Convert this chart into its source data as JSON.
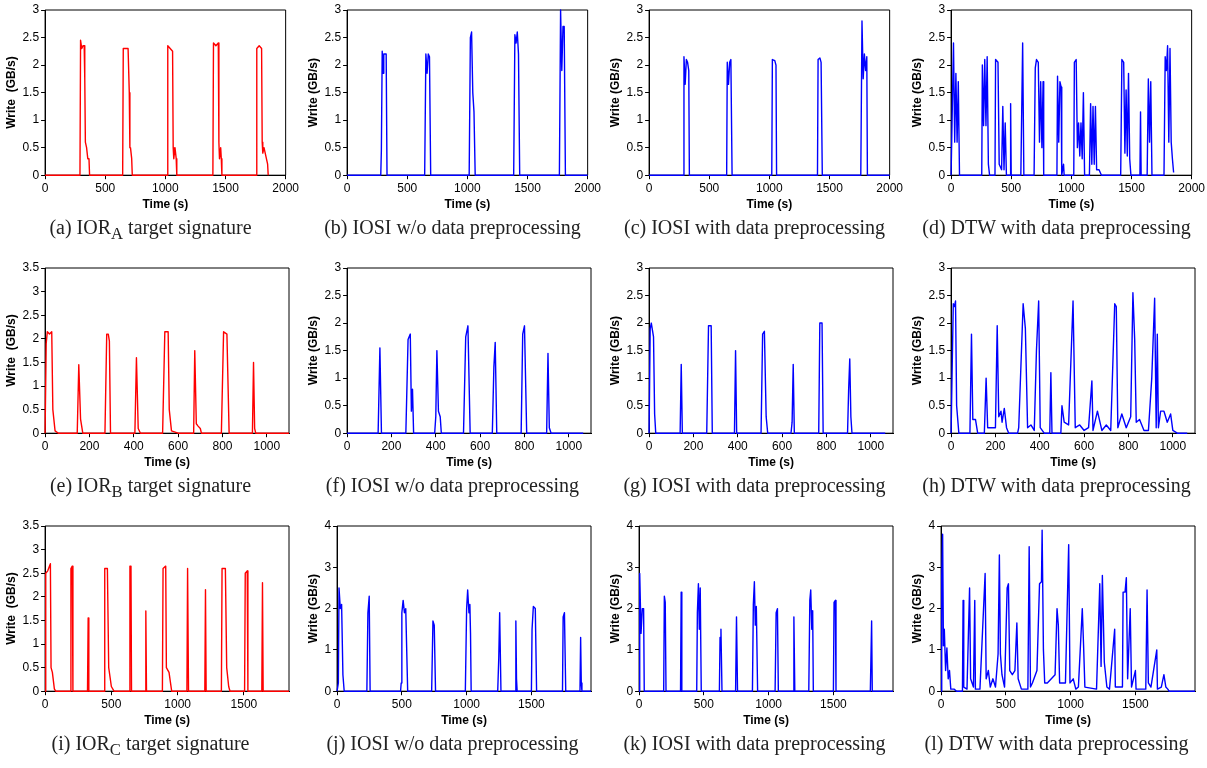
{
  "chart_data": [
    {
      "type": "line",
      "title": "(a) IOR$_{A}$ target signature",
      "xlabel": "Time (s)",
      "ylabel": "Write  (GB/s)",
      "xlim": [
        0,
        2000
      ],
      "xticks": [
        0,
        500,
        1000,
        1500,
        2000
      ],
      "ylim": [
        0,
        3
      ],
      "yticks": [
        0,
        0.5,
        1,
        1.5,
        2,
        2.5,
        3
      ],
      "x": [
        0,
        290,
        295,
        305,
        315,
        325,
        330,
        335,
        345,
        355,
        365,
        370,
        645,
        650,
        670,
        690,
        700,
        705,
        710,
        720,
        725,
        1015,
        1020,
        1040,
        1060,
        1065,
        1070,
        1080,
        1090,
        1095,
        1395,
        1400,
        1420,
        1440,
        1445,
        1450,
        1460,
        1465,
        1470,
        1755,
        1760,
        1780,
        1800,
        1805,
        1810,
        1820,
        1840,
        1850,
        1855
      ],
      "series": [
        {
          "color": "#ff0000",
          "values": [
            0,
            0,
            2.45,
            2.3,
            2.35,
            2.35,
            1.75,
            0.6,
            0.5,
            0.3,
            0.3,
            0,
            0,
            2.3,
            2.3,
            2.3,
            1.5,
            0.5,
            0.5,
            0.3,
            0,
            0,
            2.35,
            2.3,
            2.25,
            0.5,
            0.3,
            0.5,
            0.3,
            0,
            0,
            2.4,
            2.35,
            2.4,
            0.6,
            0.3,
            0.5,
            0.3,
            0,
            0,
            2.3,
            2.35,
            2.3,
            0.6,
            0.4,
            0.5,
            0.3,
            0.2,
            0
          ]
        }
      ]
    },
    {
      "type": "line",
      "title": "(b) IOSI w/o data preprocessing",
      "xlabel": "Time (s)",
      "ylabel": "Write (GB/s)",
      "xlim": [
        0,
        2000
      ],
      "xticks": [
        0,
        500,
        1000,
        1500,
        2000
      ],
      "ylim": [
        0,
        3
      ],
      "yticks": [
        0,
        0.5,
        1,
        1.5,
        2,
        2.5,
        3
      ],
      "x": [
        0,
        280,
        285,
        292,
        300,
        305,
        315,
        325,
        332,
        645,
        655,
        665,
        675,
        685,
        695,
        1015,
        1025,
        1035,
        1045,
        1055,
        1065,
        1385,
        1395,
        1405,
        1415,
        1425,
        1435,
        1765,
        1775,
        1785,
        1795,
        1805,
        1815,
        2000
      ],
      "series": [
        {
          "color": "#0000ff",
          "values": [
            0,
            0,
            0.45,
            2.25,
            1.85,
            2.2,
            2.2,
            2.2,
            0,
            0,
            2.2,
            1.85,
            2.2,
            2.15,
            0,
            0,
            2.5,
            2.6,
            1.5,
            1.15,
            0,
            0,
            2.55,
            2.4,
            2.6,
            2.2,
            0,
            0,
            3,
            1.9,
            2.7,
            2.7,
            0,
            0
          ]
        }
      ]
    },
    {
      "type": "line",
      "title": "(c) IOSI with data preprocessing",
      "xlabel": "Time (s)",
      "ylabel": "Write (GB/s)",
      "xlim": [
        0,
        2000
      ],
      "xticks": [
        0,
        500,
        1000,
        1500,
        2000
      ],
      "ylim": [
        0,
        3
      ],
      "yticks": [
        0,
        0.5,
        1,
        1.5,
        2,
        2.5,
        3
      ],
      "x": [
        0,
        285,
        290,
        300,
        310,
        320,
        330,
        335,
        645,
        650,
        660,
        670,
        680,
        690,
        1020,
        1025,
        1045,
        1055,
        1060,
        1400,
        1405,
        1420,
        1430,
        1440,
        1760,
        1770,
        1780,
        1790,
        1800,
        1810,
        1815,
        2000
      ],
      "series": [
        {
          "color": "#0000ff",
          "values": [
            0,
            0,
            2.15,
            1.65,
            2.1,
            2.05,
            1.9,
            0,
            0,
            2.05,
            1.65,
            2.05,
            2.1,
            0,
            0,
            2.1,
            2.08,
            2,
            0,
            0,
            2.1,
            2.13,
            2.05,
            0,
            0,
            2.8,
            1.75,
            2.2,
            1.9,
            2.15,
            0,
            0
          ]
        }
      ]
    },
    {
      "type": "line",
      "title": "(d) DTW with data preprocessing",
      "xlabel": "Time (s)",
      "ylabel": "Write (GB/s)",
      "xlim": [
        0,
        2000
      ],
      "xticks": [
        0,
        500,
        1000,
        1500,
        2000
      ],
      "ylim": [
        0,
        3
      ],
      "yticks": [
        0,
        0.5,
        1,
        1.5,
        2,
        2.5,
        3
      ],
      "x": [
        0,
        20,
        30,
        40,
        50,
        60,
        70,
        255,
        260,
        270,
        280,
        290,
        300,
        310,
        320,
        365,
        370,
        390,
        400,
        420,
        430,
        440,
        450,
        460,
        490,
        495,
        500,
        580,
        595,
        605,
        690,
        700,
        710,
        725,
        735,
        745,
        755,
        765,
        770,
        880,
        885,
        895,
        905,
        915,
        920,
        935,
        940,
        1020,
        1025,
        1040,
        1050,
        1060,
        1070,
        1080,
        1090,
        1100,
        1110,
        1150,
        1160,
        1170,
        1180,
        1190,
        1200,
        1210,
        1230,
        1250,
        1410,
        1420,
        1435,
        1445,
        1455,
        1465,
        1475,
        1485,
        1495,
        1570,
        1575,
        1580,
        1630,
        1640,
        1650,
        1660,
        1670,
        1770,
        1780,
        1790,
        1800,
        1810,
        1820,
        1830,
        1840,
        1850
      ],
      "series": [
        {
          "color": "#0000ff",
          "values": [
            0,
            2.4,
            0.6,
            1.85,
            0.6,
            1.7,
            0,
            0,
            2,
            0.9,
            2.1,
            0.9,
            2.15,
            0.2,
            0,
            0,
            2.1,
            2.05,
            0.2,
            0.1,
            1.25,
            0.1,
            0.95,
            0,
            0,
            1.3,
            0,
            0,
            2.4,
            0,
            0,
            1.95,
            2.1,
            2.05,
            0.6,
            1.7,
            0.5,
            1.7,
            0,
            0,
            1.8,
            0.6,
            1.7,
            1.6,
            0,
            0.2,
            0,
            0,
            2.05,
            2.1,
            0.5,
            0.95,
            0.35,
            0.95,
            0.3,
            1.5,
            0,
            0,
            1.3,
            0.2,
            1.25,
            0.2,
            1.25,
            0.1,
            0.1,
            0,
            0,
            2.1,
            2.05,
            0.4,
            1.55,
            0.35,
            1.85,
            0.3,
            0,
            0,
            1.15,
            0,
            0,
            1.75,
            0.6,
            1.7,
            0,
            0,
            2.15,
            1.9,
            2.35,
            0.6,
            2.3,
            0.6,
            0.3,
            0.05
          ]
        }
      ]
    },
    {
      "type": "line",
      "title": "(e) IOR$_{B}$ target signature",
      "xlabel": "Time (s)",
      "ylabel": "Write  (GB/s)",
      "xlim": [
        0,
        1100
      ],
      "xticks": [
        0,
        200,
        400,
        600,
        800,
        1000
      ],
      "ylim": [
        0,
        3.5
      ],
      "yticks": [
        0,
        0.5,
        1,
        1.5,
        2,
        2.5,
        3,
        3.5
      ],
      "x": [
        0,
        5,
        10,
        20,
        30,
        35,
        45,
        60,
        145,
        152,
        160,
        170,
        270,
        278,
        285,
        290,
        295,
        405,
        412,
        420,
        430,
        530,
        540,
        555,
        560,
        570,
        600,
        670,
        675,
        682,
        690,
        700,
        705,
        795,
        805,
        820,
        830,
        935,
        940,
        945,
        950,
        1100
      ],
      "series": [
        {
          "color": "#ff0000",
          "values": [
            0,
            1.9,
            2.15,
            2.1,
            2.15,
            0.5,
            0.05,
            0,
            0,
            1.45,
            0.3,
            0,
            0,
            2.1,
            2.1,
            1.95,
            0,
            0,
            1.6,
            0.1,
            0,
            0,
            2.15,
            2.15,
            0.5,
            0.05,
            0,
            0,
            1.75,
            0.2,
            0.15,
            0.1,
            0,
            0,
            2.15,
            2.1,
            0,
            0,
            1.5,
            0.1,
            0,
            0
          ]
        }
      ]
    },
    {
      "type": "line",
      "title": "(f) IOSI w/o data preprocessing",
      "xlabel": "Time (s)",
      "ylabel": "Write (GB/s)",
      "xlim": [
        0,
        1100
      ],
      "xticks": [
        0,
        200,
        400,
        600,
        800,
        1000
      ],
      "ylim": [
        0,
        3
      ],
      "yticks": [
        0,
        0.5,
        1,
        1.5,
        2,
        2.5,
        3
      ],
      "x": [
        0,
        140,
        148,
        155,
        265,
        275,
        285,
        290,
        295,
        300,
        395,
        400,
        405,
        412,
        420,
        425,
        525,
        535,
        545,
        555,
        655,
        662,
        668,
        675,
        785,
        792,
        800,
        810,
        900,
        906,
        912,
        920,
        1065
      ],
      "series": [
        {
          "color": "#0000ff",
          "values": [
            0,
            0,
            1.55,
            0,
            0,
            1.7,
            1.8,
            0.4,
            0.8,
            0,
            0,
            0.3,
            1.5,
            0.4,
            0.3,
            0,
            0,
            1.75,
            1.95,
            0,
            0,
            1.2,
            1.65,
            0,
            0,
            1.8,
            1.95,
            0,
            0,
            1.45,
            0.1,
            0,
            0
          ]
        }
      ]
    },
    {
      "type": "line",
      "title": "(g) IOSI with data preprocessing",
      "xlabel": "Time (s)",
      "ylabel": "Write (GB/s)",
      "xlim": [
        0,
        1100
      ],
      "xticks": [
        0,
        200,
        400,
        600,
        800,
        1000
      ],
      "ylim": [
        0,
        3
      ],
      "yticks": [
        0,
        0.5,
        1,
        1.5,
        2,
        2.5,
        3
      ],
      "x": [
        0,
        5,
        10,
        20,
        25,
        30,
        140,
        145,
        150,
        260,
        268,
        280,
        285,
        385,
        390,
        395,
        505,
        512,
        520,
        528,
        535,
        640,
        645,
        650,
        655,
        765,
        770,
        780,
        785,
        895,
        900,
        905,
        910,
        915,
        1065
      ],
      "series": [
        {
          "color": "#0000ff",
          "values": [
            0,
            1.9,
            2,
            1.75,
            0.35,
            0,
            0,
            1.25,
            0,
            0,
            1.95,
            1.95,
            0,
            0,
            1.5,
            0,
            0,
            1.8,
            1.85,
            0.3,
            0,
            0,
            0.2,
            1.25,
            0,
            0,
            2,
            2,
            0,
            0,
            0.8,
            1.35,
            0.3,
            0,
            0
          ]
        }
      ]
    },
    {
      "type": "line",
      "title": "(h) DTW with data preprocessing",
      "xlabel": "Time (s)",
      "ylabel": "Write (GB/s)",
      "xlim": [
        0,
        1100
      ],
      "xticks": [
        0,
        200,
        400,
        600,
        800,
        1000
      ],
      "ylim": [
        0,
        3
      ],
      "yticks": [
        0,
        0.5,
        1,
        1.5,
        2,
        2.5,
        3
      ],
      "x": [
        0,
        5,
        10,
        15,
        20,
        25,
        35,
        85,
        92,
        98,
        110,
        120,
        150,
        158,
        165,
        200,
        208,
        215,
        225,
        230,
        240,
        250,
        260,
        300,
        305,
        325,
        335,
        345,
        360,
        375,
        385,
        395,
        402,
        420,
        445,
        450,
        455,
        495,
        500,
        510,
        530,
        550,
        560,
        580,
        600,
        620,
        635,
        640,
        660,
        680,
        700,
        720,
        738,
        745,
        752,
        770,
        790,
        810,
        820,
        828,
        835,
        850,
        870,
        890,
        905,
        918,
        925,
        930,
        935,
        945,
        960,
        975,
        990,
        1000,
        1020,
        1065
      ],
      "series": [
        {
          "color": "#0000ff",
          "values": [
            0,
            1.2,
            2.35,
            2.3,
            2.4,
            0.5,
            0,
            0,
            1.8,
            0.25,
            0.25,
            0,
            0,
            1,
            0.1,
            0.1,
            1.95,
            0.3,
            0.4,
            0.2,
            0.45,
            0.1,
            0,
            0,
            0.1,
            2.35,
            1.9,
            0.1,
            0.15,
            0.05,
            1.5,
            2.4,
            0.1,
            0,
            0,
            1.1,
            0,
            0,
            0.5,
            0.2,
            0.15,
            2.4,
            0.1,
            0.15,
            0.05,
            0.1,
            0.95,
            0.05,
            0.4,
            0.05,
            0.15,
            0.05,
            2.35,
            2.3,
            0.1,
            0.35,
            0.1,
            0.3,
            2.55,
            1.7,
            0.2,
            0.25,
            0.05,
            0.05,
            1,
            2.45,
            0.1,
            1.8,
            0.1,
            0.4,
            0.4,
            0.2,
            0.35,
            0.05,
            0,
            0
          ]
        }
      ]
    },
    {
      "type": "line",
      "title": "(i) IOR$_{C}$ target signature",
      "xlabel": "Time (s)",
      "ylabel": "Write  (GB/s)",
      "xlim": [
        0,
        1840
      ],
      "xticks": [
        0,
        500,
        1000,
        1500
      ],
      "ylim": [
        0,
        3.5
      ],
      "yticks": [
        0,
        0.5,
        1,
        1.5,
        2,
        2.5,
        3,
        3.5
      ],
      "x": [
        0,
        5,
        20,
        40,
        45,
        55,
        70,
        80,
        190,
        195,
        205,
        210,
        320,
        325,
        330,
        445,
        450,
        470,
        480,
        500,
        520,
        635,
        640,
        648,
        652,
        755,
        760,
        765,
        885,
        890,
        910,
        915,
        935,
        955,
        1070,
        1075,
        1082,
        1205,
        1210,
        1215,
        1330,
        1335,
        1360,
        1370,
        1385,
        1395,
        1505,
        1510,
        1525,
        1530,
        1635,
        1640,
        1645,
        1840
      ],
      "series": [
        {
          "color": "#ff0000",
          "values": [
            0,
            2.5,
            2.55,
            2.7,
            0.5,
            0.4,
            0.05,
            0,
            0,
            2.6,
            2.65,
            0,
            0,
            1.55,
            0,
            0,
            2.6,
            2.6,
            0.5,
            0.1,
            0,
            0,
            2.65,
            2.65,
            0,
            0,
            1.7,
            0,
            0,
            2.6,
            2.65,
            0.5,
            0.4,
            0,
            0,
            2.6,
            0,
            0,
            2.15,
            0,
            0,
            2.6,
            2.6,
            0.5,
            0.1,
            0,
            0,
            2.5,
            2.55,
            0,
            0,
            2.3,
            0,
            0
          ]
        }
      ]
    },
    {
      "type": "line",
      "title": "(j) IOSI w/o data preprocessing",
      "xlabel": "Time (s)",
      "ylabel": "Write (GB/s)",
      "xlim": [
        0,
        1960
      ],
      "xticks": [
        0,
        500,
        1000,
        1500
      ],
      "ylim": [
        0,
        4
      ],
      "yticks": [
        0,
        1,
        2,
        3,
        4
      ],
      "x": [
        0,
        10,
        15,
        25,
        35,
        45,
        55,
        230,
        238,
        248,
        255,
        490,
        495,
        500,
        510,
        520,
        530,
        545,
        730,
        740,
        750,
        760,
        990,
        1000,
        1008,
        1018,
        1025,
        1030,
        1035,
        1240,
        1248,
        1255,
        1265,
        1375,
        1380,
        1385,
        1390,
        1500,
        1505,
        1515,
        1530,
        1540,
        1740,
        1745,
        1755,
        1765,
        1875,
        1880,
        1885,
        1890,
        1960
      ],
      "series": [
        {
          "color": "#0000ff",
          "values": [
            0,
            0.2,
            2.5,
            2,
            2.1,
            0.4,
            0,
            0,
            1.9,
            2.3,
            0,
            0,
            0.2,
            1.9,
            2.2,
            1.9,
            2,
            0,
            0,
            1.7,
            1.6,
            0,
            0,
            2,
            2.45,
            1.9,
            2.1,
            1.4,
            0,
            0,
            0.8,
            1.9,
            0,
            0,
            1.7,
            0.3,
            0,
            0,
            1.5,
            2.05,
            2,
            0,
            0,
            1.8,
            1.9,
            0,
            0,
            1.3,
            0.2,
            0,
            0
          ]
        }
      ]
    },
    {
      "type": "line",
      "title": "(k) IOSI with data preprocessing",
      "xlabel": "Time (s)",
      "ylabel": "Write (GB/s)",
      "xlim": [
        0,
        1960
      ],
      "xticks": [
        0,
        500,
        1000,
        1500
      ],
      "ylim": [
        0,
        4
      ],
      "yticks": [
        0,
        1,
        2,
        3,
        4
      ],
      "x": [
        0,
        5,
        15,
        25,
        35,
        40,
        190,
        195,
        202,
        208,
        320,
        325,
        330,
        445,
        450,
        458,
        465,
        472,
        480,
        620,
        625,
        632,
        640,
        745,
        752,
        760,
        875,
        882,
        890,
        897,
        905,
        915,
        1050,
        1058,
        1068,
        1075,
        1190,
        1195,
        1202,
        1310,
        1318,
        1325,
        1333,
        1340,
        1345,
        1500,
        1505,
        1515,
        1520,
        1785,
        1795,
        1800,
        1960
      ],
      "series": [
        {
          "color": "#0000ff",
          "values": [
            0,
            2.85,
            1.4,
            2,
            2,
            0,
            0,
            2.3,
            2.15,
            0,
            0,
            2.4,
            0,
            0,
            1.9,
            2.6,
            1.5,
            2.5,
            0,
            0,
            1.3,
            1.5,
            0,
            0,
            1.8,
            0,
            0,
            2.1,
            2.65,
            1.6,
            2.05,
            0,
            0,
            1.9,
            2,
            0,
            0,
            1.8,
            0,
            0,
            2.2,
            2.45,
            1.5,
            1.95,
            0,
            0,
            2.15,
            2.2,
            0,
            0,
            1.7,
            0,
            0
          ]
        }
      ]
    },
    {
      "type": "line",
      "title": "(l) DTW with data preprocessing",
      "xlabel": "Time (s)",
      "ylabel": "Write (GB/s)",
      "xlim": [
        0,
        1960
      ],
      "xticks": [
        0,
        500,
        1000,
        1500
      ],
      "ylim": [
        0,
        4
      ],
      "yticks": [
        0,
        1,
        2,
        3,
        4
      ],
      "x": [
        0,
        5,
        12,
        18,
        25,
        35,
        45,
        55,
        65,
        75,
        100,
        120,
        165,
        170,
        175,
        200,
        220,
        228,
        250,
        260,
        265,
        300,
        340,
        348,
        365,
        380,
        400,
        420,
        440,
        450,
        458,
        470,
        490,
        510,
        520,
        530,
        550,
        570,
        585,
        595,
        620,
        670,
        680,
        690,
        705,
        740,
        760,
        775,
        780,
        790,
        800,
        820,
        880,
        895,
        905,
        915,
        940,
        960,
        985,
        995,
        1020,
        1040,
        1060,
        1090,
        1100,
        1110,
        1200,
        1225,
        1235,
        1245,
        1260,
        1280,
        1300,
        1340,
        1345,
        1400,
        1405,
        1420,
        1430,
        1440,
        1460,
        1470,
        1500,
        1505,
        1580,
        1590,
        1600,
        1620,
        1665,
        1670,
        1700,
        1720,
        1735,
        1750,
        1760,
        1960
      ],
      "series": [
        {
          "color": "#0000ff",
          "values": [
            0,
            2.8,
            3.8,
            1.1,
            1.5,
            0.5,
            1.05,
            0.3,
            0.5,
            0.05,
            0.05,
            0,
            0,
            2.2,
            0.1,
            0.05,
            2.5,
            0.3,
            0.1,
            2.2,
            0.05,
            0.05,
            2.85,
            0.3,
            0.5,
            0.1,
            0.3,
            0.1,
            0.9,
            3.3,
            0.9,
            0.4,
            0.1,
            2.5,
            2.6,
            0.5,
            0.4,
            0.5,
            1.65,
            0.3,
            0.05,
            0.05,
            3.5,
            0.1,
            0.2,
            0.5,
            2.6,
            2.65,
            3.9,
            1,
            0.2,
            0.2,
            0.4,
            2,
            1.6,
            0.2,
            0.2,
            0.2,
            3.55,
            0.2,
            0.3,
            0.05,
            0.1,
            2,
            1.1,
            0.1,
            0.05,
            2.6,
            0.6,
            2.8,
            0.7,
            0.1,
            0.05,
            1.5,
            0.1,
            0.1,
            2.4,
            2.4,
            2.75,
            0.3,
            2,
            0.1,
            0.5,
            0.05,
            0.05,
            2.45,
            0.2,
            0.1,
            1,
            0.05,
            0.1,
            0.4,
            0.1,
            0.05,
            0,
            0
          ]
        }
      ]
    }
  ]
}
